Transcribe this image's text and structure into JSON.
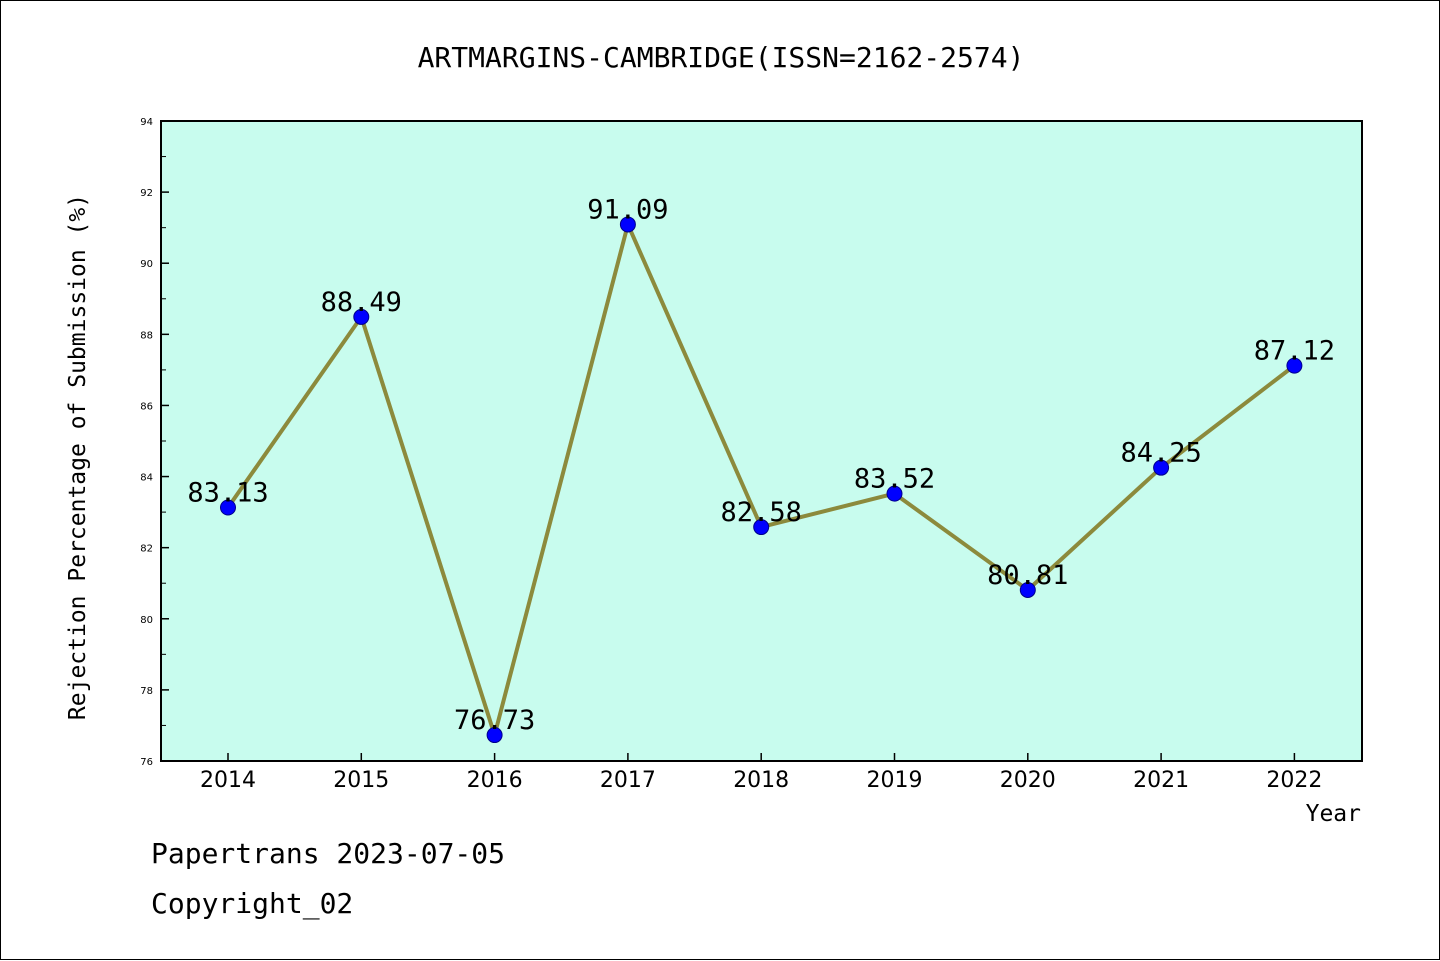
{
  "chart_data": {
    "type": "line",
    "title": "ARTMARGINS-CAMBRIDGE(ISSN=2162-2574)",
    "xlabel": "Year",
    "ylabel": "Rejection Percentage of Submission (%)",
    "categories": [
      "2014",
      "2015",
      "2016",
      "2017",
      "2018",
      "2019",
      "2020",
      "2021",
      "2022"
    ],
    "values": [
      83.13,
      88.49,
      76.73,
      91.09,
      82.58,
      83.52,
      80.81,
      84.25,
      87.12
    ],
    "data_labels": [
      "83.13",
      "88.49",
      "76.73",
      "91.09",
      "82.58",
      "83.52",
      "80.81",
      "84.25",
      "87.12"
    ],
    "ylim": [
      76,
      94
    ],
    "yticks": [
      "76",
      "78",
      "80",
      "82",
      "84",
      "86",
      "88",
      "90",
      "92",
      "94"
    ],
    "grid": false,
    "colors": {
      "plot_background": "#c8fcee",
      "line": "#8c8a3c",
      "marker": "#0000ff"
    }
  },
  "footer": {
    "line1": "Papertrans 2023-07-05",
    "line2": "Copyright_02"
  }
}
